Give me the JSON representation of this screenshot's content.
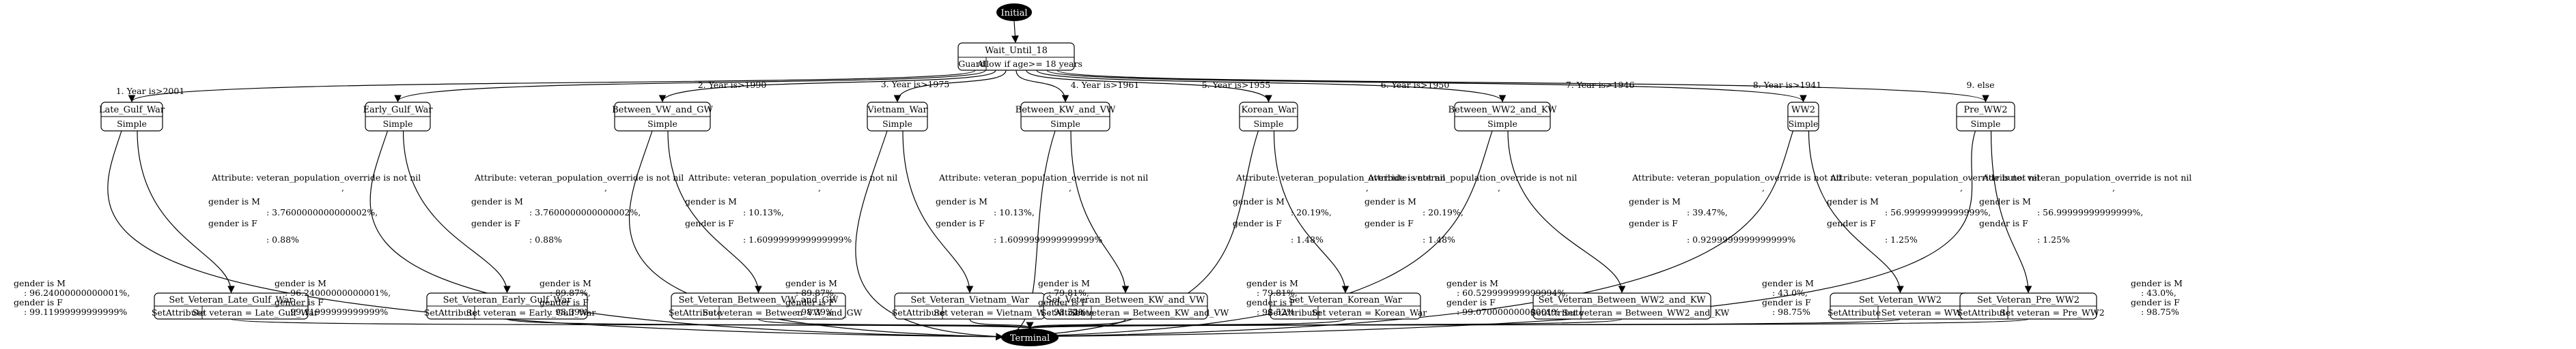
{
  "start": {
    "label": "Initial"
  },
  "end": {
    "label": "Terminal"
  },
  "wait": {
    "title": "Wait_Until_18",
    "guard_label": "Guard",
    "guard_value": "Allow if age>= 18 years"
  },
  "branches": [
    {
      "name": "Late_Gulf_War",
      "kind": "Simple",
      "edge": "1. Year is>2001",
      "attr": "Attribute: veteran_population_override is not nil",
      "mid_lines": [
        "gender is M",
        ": 3.7600000000000002%,",
        "gender is F",
        ": 0.88%"
      ],
      "set_title": "Set_Veteran_Late_Gulf_War",
      "set_kind": "SetAttribute",
      "set_value": "Set veteran = Late_Gulf_War",
      "term_lines": [
        "gender is M",
        ": 96.24000000000001%,",
        "gender is F",
        ": 99.11999999999999%"
      ]
    },
    {
      "name": "Early_Gulf_War",
      "kind": "Simple",
      "edge": "2. Year is>1990",
      "attr": "Attribute: veteran_population_override is not nil",
      "mid_lines": [
        "gender is M",
        ": 3.7600000000000002%,",
        "gender is F",
        ": 0.88%"
      ],
      "set_title": "Set_Veteran_Early_Gulf_War",
      "set_kind": "SetAttribute",
      "set_value": "Set veteran = Early_Gulf_War",
      "term_lines": [
        "gender is M",
        ": 96.24000000000001%,",
        "gender is F",
        ": 99.11999999999999%"
      ]
    },
    {
      "name": "Between_VW_and_GW",
      "kind": "Simple",
      "edge": "3. Year is>1975",
      "attr": "Attribute: veteran_population_override is not nil",
      "mid_lines": [
        "gender is M",
        ": 10.13%,",
        "gender is F",
        ": 1.6099999999999999%"
      ],
      "set_title": "Set_Veteran_Between_VW_and_GW",
      "set_kind": "SetAttribute",
      "set_value": "Set veteran = Between_VW_and_GW",
      "term_lines": [
        "gender is M",
        ": 89.87%,",
        "gender is F",
        ": 98.39%"
      ]
    },
    {
      "name": "Vietnam_War",
      "kind": "Simple",
      "edge": "4. Year is>1961",
      "attr": "Attribute: veteran_population_override is not nil",
      "mid_lines": [
        "gender is M",
        ": 10.13%,",
        "gender is F",
        ": 1.6099999999999999%"
      ],
      "set_title": "Set_Veteran_Vietnam_War",
      "set_kind": "SetAttribute",
      "set_value": "Set veteran = Vietnam_War",
      "term_lines": [
        "gender is M",
        ": 89.87%,",
        "gender is F",
        ": 98.39%"
      ]
    },
    {
      "name": "Between_KW_and_VW",
      "kind": "Simple",
      "edge": "5. Year is>1955",
      "attr": "Attribute: veteran_population_override is not nil",
      "mid_lines": [
        "gender is M",
        ": 20.19%,",
        "gender is F",
        ": 1.48%"
      ],
      "set_title": "Set_Veteran_Between_KW_and_VW",
      "set_kind": "SetAttribute",
      "set_value": "Set veteran = Between_KW_and_VW",
      "term_lines": [
        "gender is M",
        ": 79.81%,",
        "gender is F",
        ": 98.52%"
      ]
    },
    {
      "name": "Korean_War",
      "kind": "Simple",
      "edge": "6. Year is>1950",
      "attr": "Attribute: veteran_population_override is not nil",
      "mid_lines": [
        "gender is M",
        ": 20.19%,",
        "gender is F",
        ": 1.48%"
      ],
      "set_title": "Set_Veteran_Korean_War",
      "set_kind": "SetAttribute",
      "set_value": "Set veteran = Korean_War",
      "term_lines": [
        "gender is M",
        ": 79.81%,",
        "gender is F",
        ": 98.52%"
      ]
    },
    {
      "name": "Between_WW2_and_KW",
      "kind": "Simple",
      "edge": "7. Year is>1946",
      "attr": "Attribute: veteran_population_override is not nil",
      "mid_lines": [
        "gender is M",
        ": 39.47%,",
        "gender is F",
        ": 0.9299999999999999%"
      ],
      "set_title": "Set_Veteran_Between_WW2_and_KW",
      "set_kind": "SetAttribute",
      "set_value": "Set veteran = Between_WW2_and_KW",
      "term_lines": [
        "gender is M",
        ": 60.529999999999994%,",
        "gender is F",
        ": 99.07000000000001%"
      ]
    },
    {
      "name": "WW2",
      "kind": "Simple",
      "edge": "8. Year is>1941",
      "attr": "Attribute: veteran_population_override is not nil",
      "mid_lines": [
        "gender is M",
        ": 56.99999999999999%,",
        "gender is F",
        ": 1.25%"
      ],
      "set_title": "Set_Veteran_WW2",
      "set_kind": "SetAttribute",
      "set_value": "Set veteran = WW2",
      "term_lines": [
        "gender is M",
        ": 43.0%,",
        "gender is F",
        ": 98.75%"
      ]
    },
    {
      "name": "Pre_WW2",
      "kind": "Simple",
      "edge": "9. else",
      "attr": "Attribute: veteran_population_override is not nil",
      "mid_lines": [
        "gender is M",
        ": 56.99999999999999%,",
        "gender is F",
        ": 1.25%"
      ],
      "set_title": "Set_Veteran_Pre_WW2",
      "set_kind": "SetAttribute",
      "set_value": "Set veteran = Pre_WW2",
      "term_lines": [
        "gender is M",
        ": 43.0%,",
        "gender is F",
        ": 98.75%"
      ]
    }
  ]
}
